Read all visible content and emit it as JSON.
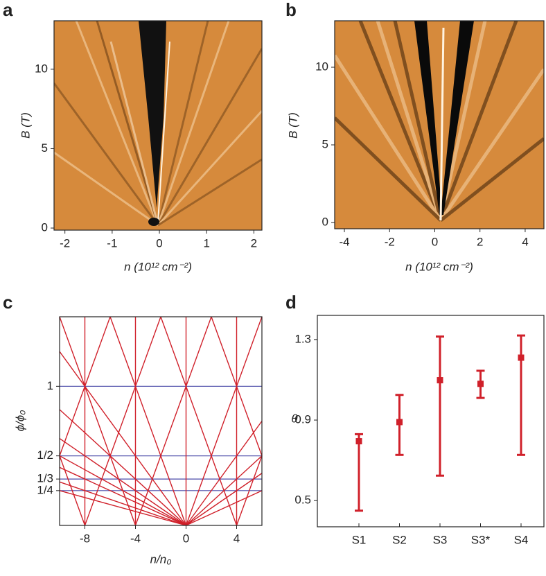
{
  "chart_data": [
    {
      "type": "heatmap",
      "panel_label": "a",
      "xlabel": "n (10¹² cm⁻²)",
      "ylabel": "B (T)",
      "xlim": [
        -2.23,
        2.17
      ],
      "ylim": [
        -0.13,
        13.05
      ],
      "xticks": [
        -2,
        -1,
        0,
        1,
        2
      ],
      "yticks": [
        0,
        5,
        10
      ]
    },
    {
      "type": "heatmap",
      "panel_label": "b",
      "xlabel": "n (10¹² cm⁻²)",
      "ylabel": "B (T)",
      "xlim": [
        -4.43,
        4.83
      ],
      "ylim": [
        -0.4,
        12.99
      ],
      "xticks": [
        -4,
        -2,
        0,
        2,
        4
      ],
      "yticks": [
        0,
        5,
        10
      ]
    },
    {
      "type": "line",
      "panel_label": "c",
      "xlabel": "n/n₀",
      "ylabel": "ϕ/ϕ₀",
      "xlim": [
        -10,
        6
      ],
      "ylim": [
        0,
        1.5
      ],
      "xticks": [
        -8,
        -4,
        0,
        4
      ],
      "yticks": [
        {
          "value": 0.25,
          "label": "1/4"
        },
        {
          "value": 0.3333,
          "label": "1/3"
        },
        {
          "value": 0.5,
          "label": "1/2"
        },
        1
      ],
      "grid": true,
      "grid_color": "#4a4aa8",
      "color": "#d0202a",
      "lines": [
        {
          "x": [
            0,
            6
          ],
          "y": [
            0,
            1.5
          ]
        },
        {
          "x": [
            0,
            6
          ],
          "y": [
            0,
            0.75
          ]
        },
        {
          "x": [
            0,
            6
          ],
          "y": [
            0,
            0.5
          ]
        },
        {
          "x": [
            0,
            6
          ],
          "y": [
            0,
            0.375
          ]
        },
        {
          "x": [
            0,
            6
          ],
          "y": [
            0,
            0.25
          ]
        },
        {
          "x": [
            0,
            -6
          ],
          "y": [
            0,
            1.5
          ]
        },
        {
          "x": [
            0,
            -10
          ],
          "y": [
            0,
            1.25
          ]
        },
        {
          "x": [
            0,
            -10
          ],
          "y": [
            0,
            0.833
          ]
        },
        {
          "x": [
            0,
            -10
          ],
          "y": [
            0,
            0.625
          ]
        },
        {
          "x": [
            0,
            -10
          ],
          "y": [
            0,
            0.5
          ]
        },
        {
          "x": [
            0,
            -10
          ],
          "y": [
            0,
            0.417
          ]
        },
        {
          "x": [
            0,
            -10
          ],
          "y": [
            0,
            0.3125
          ]
        },
        {
          "x": [
            0,
            -10
          ],
          "y": [
            0,
            0.25
          ]
        },
        {
          "x": [
            -4,
            2
          ],
          "y": [
            0,
            1.5
          ]
        },
        {
          "x": [
            -8,
            -2
          ],
          "y": [
            0,
            1.5
          ]
        },
        {
          "x": [
            4,
            -2
          ],
          "y": [
            0,
            1.5
          ]
        },
        {
          "x": [
            -4,
            -10
          ],
          "y": [
            0,
            1.5
          ]
        },
        {
          "x": [
            -8,
            -10
          ],
          "y": [
            0,
            0.5
          ]
        },
        {
          "x": [
            4,
            6
          ],
          "y": [
            0,
            0.5
          ]
        },
        {
          "x": [
            6,
            2
          ],
          "y": [
            0.5,
            1.5
          ]
        },
        {
          "x": [
            -10,
            -6
          ],
          "y": [
            0.5,
            1.5
          ]
        },
        {
          "x": [
            -8,
            -8
          ],
          "y": [
            0,
            1.5
          ]
        },
        {
          "x": [
            -4,
            -4
          ],
          "y": [
            0,
            1.5
          ]
        },
        {
          "x": [
            0,
            0
          ],
          "y": [
            0,
            1.5
          ]
        },
        {
          "x": [
            4,
            4
          ],
          "y": [
            0,
            1.5
          ]
        }
      ]
    },
    {
      "type": "errorbar",
      "panel_label": "d",
      "ylabel": "θ",
      "categories": [
        "S1",
        "S2",
        "S3",
        "S3*",
        "S4"
      ],
      "ylim": [
        0.37,
        1.42
      ],
      "yticks": [
        0.5,
        0.9,
        1.3
      ],
      "color": "#d0202a",
      "values": [
        0.795,
        0.89,
        1.098,
        1.08,
        1.21
      ],
      "low": [
        0.45,
        0.727,
        0.624,
        1.01,
        0.727
      ],
      "high": [
        0.83,
        1.025,
        1.315,
        1.145,
        1.32
      ]
    }
  ]
}
